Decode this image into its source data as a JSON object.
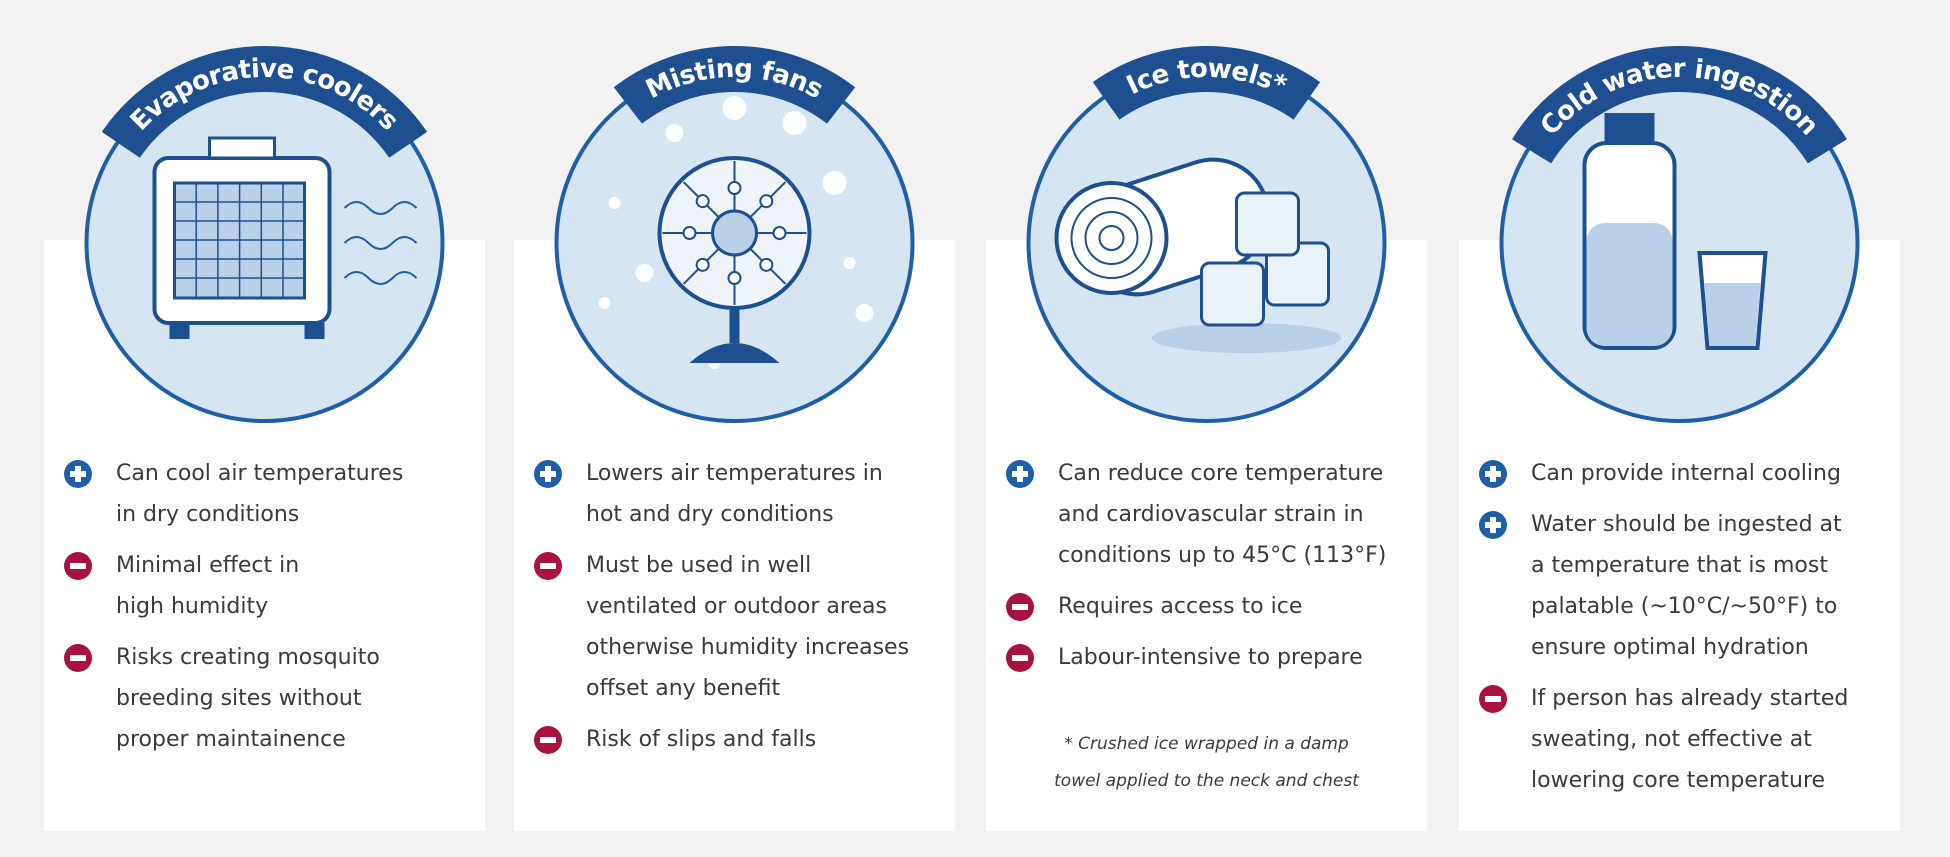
{
  "cards": [
    {
      "title": "Evaporative coolers",
      "items": [
        {
          "sign": "plus",
          "lines": [
            "Can cool air temperatures",
            "in dry conditions"
          ]
        },
        {
          "sign": "minus",
          "lines": [
            "Minimal effect in",
            "high humidity"
          ]
        },
        {
          "sign": "minus",
          "lines": [
            "Risks creating mosquito",
            "breeding sites without",
            "proper maintainence"
          ]
        }
      ]
    },
    {
      "title": "Misting fans",
      "items": [
        {
          "sign": "plus",
          "lines": [
            "Lowers air temperatures in",
            "hot and dry conditions"
          ]
        },
        {
          "sign": "minus",
          "lines": [
            "Must be used in well",
            "ventilated or outdoor areas",
            "otherwise humidity increases",
            "offset any benefit"
          ]
        },
        {
          "sign": "minus",
          "lines": [
            "Risk of slips and falls"
          ]
        }
      ]
    },
    {
      "title": "Ice towels*",
      "items": [
        {
          "sign": "plus",
          "lines": [
            "Can reduce core temperature",
            "and cardiovascular strain in",
            "conditions up to 45°C (113°F)"
          ]
        },
        {
          "sign": "minus",
          "lines": [
            "Requires access to ice"
          ]
        },
        {
          "sign": "minus",
          "lines": [
            "Labour-intensive to prepare"
          ]
        }
      ],
      "footnote": [
        "* Crushed ice wrapped in a damp",
        "towel applied to the neck and chest"
      ]
    },
    {
      "title": "Cold water ingestion",
      "items": [
        {
          "sign": "plus",
          "lines": [
            "Can provide internal cooling"
          ]
        },
        {
          "sign": "plus",
          "lines": [
            "Water should be ingested at",
            "a temperature that is most",
            "palatable (~10°C/~50°F) to",
            "ensure optimal hydration"
          ]
        },
        {
          "sign": "minus",
          "lines": [
            "If person has already started",
            "sweating, not effective at",
            "lowering core temperature"
          ]
        }
      ]
    }
  ]
}
